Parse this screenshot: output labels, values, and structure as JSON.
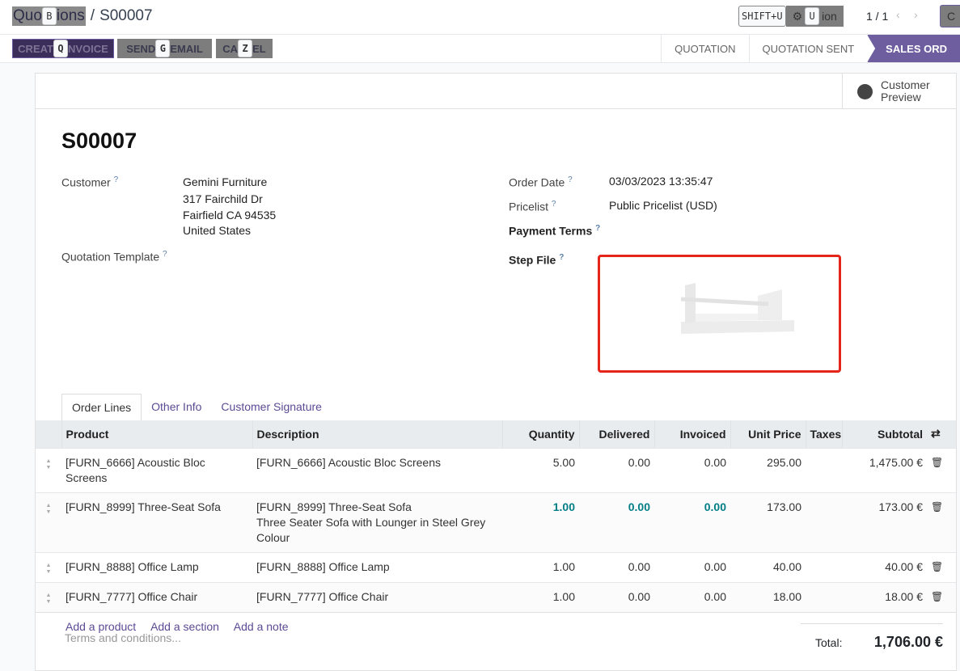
{
  "breadcrumb": {
    "parent_visible_start": "Quo",
    "parent_visible_end": "ions",
    "parent_hotkey": "B",
    "current": "S00007"
  },
  "header": {
    "shift_hotkey": "SHIFT+U",
    "action_hotkey": "U",
    "action_visible": "ion",
    "pager": "1 / 1",
    "create_visible": "C"
  },
  "actions": [
    {
      "pre": "CREAT",
      "key": "Q",
      "post": "NVOICE"
    },
    {
      "pre": "SEND ",
      "key": "G",
      "post": "EMAIL"
    },
    {
      "pre": "CA",
      "key": "Z",
      "post": "EL"
    }
  ],
  "status": [
    "QUOTATION",
    "QUOTATION SENT",
    "SALES ORD"
  ],
  "customer_preview": {
    "line1": "Customer",
    "line2": "Preview"
  },
  "order": {
    "name": "S00007",
    "customer_label": "Customer",
    "customer_name": "Gemini Furniture",
    "address": [
      "317 Fairchild Dr",
      "Fairfield CA 94535",
      "United States"
    ],
    "template_label": "Quotation Template",
    "order_date_label": "Order Date",
    "order_date": "03/03/2023 13:35:47",
    "pricelist_label": "Pricelist",
    "pricelist": "Public Pricelist (USD)",
    "payment_terms_label": "Payment Terms",
    "step_file_label": "Step File",
    "help": "?"
  },
  "tabs": [
    "Order Lines",
    "Other Info",
    "Customer Signature"
  ],
  "columns": [
    "Product",
    "Description",
    "Quantity",
    "Delivered",
    "Invoiced",
    "Unit Price",
    "Taxes",
    "Subtotal"
  ],
  "lines": [
    {
      "product": "[FURN_6666] Acoustic Bloc Screens",
      "desc": [
        "[FURN_6666] Acoustic Bloc Screens"
      ],
      "qty": "5.00",
      "delivered": "0.00",
      "invoiced": "0.00",
      "price": "295.00",
      "taxes": "",
      "subtotal": "1,475.00 €"
    },
    {
      "product": "[FURN_8999] Three-Seat Sofa",
      "desc": [
        "[FURN_8999] Three-Seat Sofa",
        "Three Seater Sofa with Lounger in Steel Grey",
        "Colour"
      ],
      "qty": "1.00",
      "delivered": "0.00",
      "invoiced": "0.00",
      "price": "173.00",
      "taxes": "",
      "subtotal": "173.00 €"
    },
    {
      "product": "[FURN_8888] Office Lamp",
      "desc": [
        "[FURN_8888] Office Lamp"
      ],
      "qty": "1.00",
      "delivered": "0.00",
      "invoiced": "0.00",
      "price": "40.00",
      "taxes": "",
      "subtotal": "40.00 €"
    },
    {
      "product": "[FURN_7777] Office Chair",
      "desc": [
        "[FURN_7777] Office Chair"
      ],
      "qty": "1.00",
      "delivered": "0.00",
      "invoiced": "0.00",
      "price": "18.00",
      "taxes": "",
      "subtotal": "18.00 €"
    }
  ],
  "add_links": [
    "Add a product",
    "Add a section",
    "Add a note"
  ],
  "terms_placeholder": "Terms and conditions...",
  "total": {
    "label": "Total:",
    "value": "1,706.00 €"
  },
  "colors": {
    "accent": "#6e5ea0",
    "highlight": "#017e84",
    "step_border": "#e5241a"
  }
}
